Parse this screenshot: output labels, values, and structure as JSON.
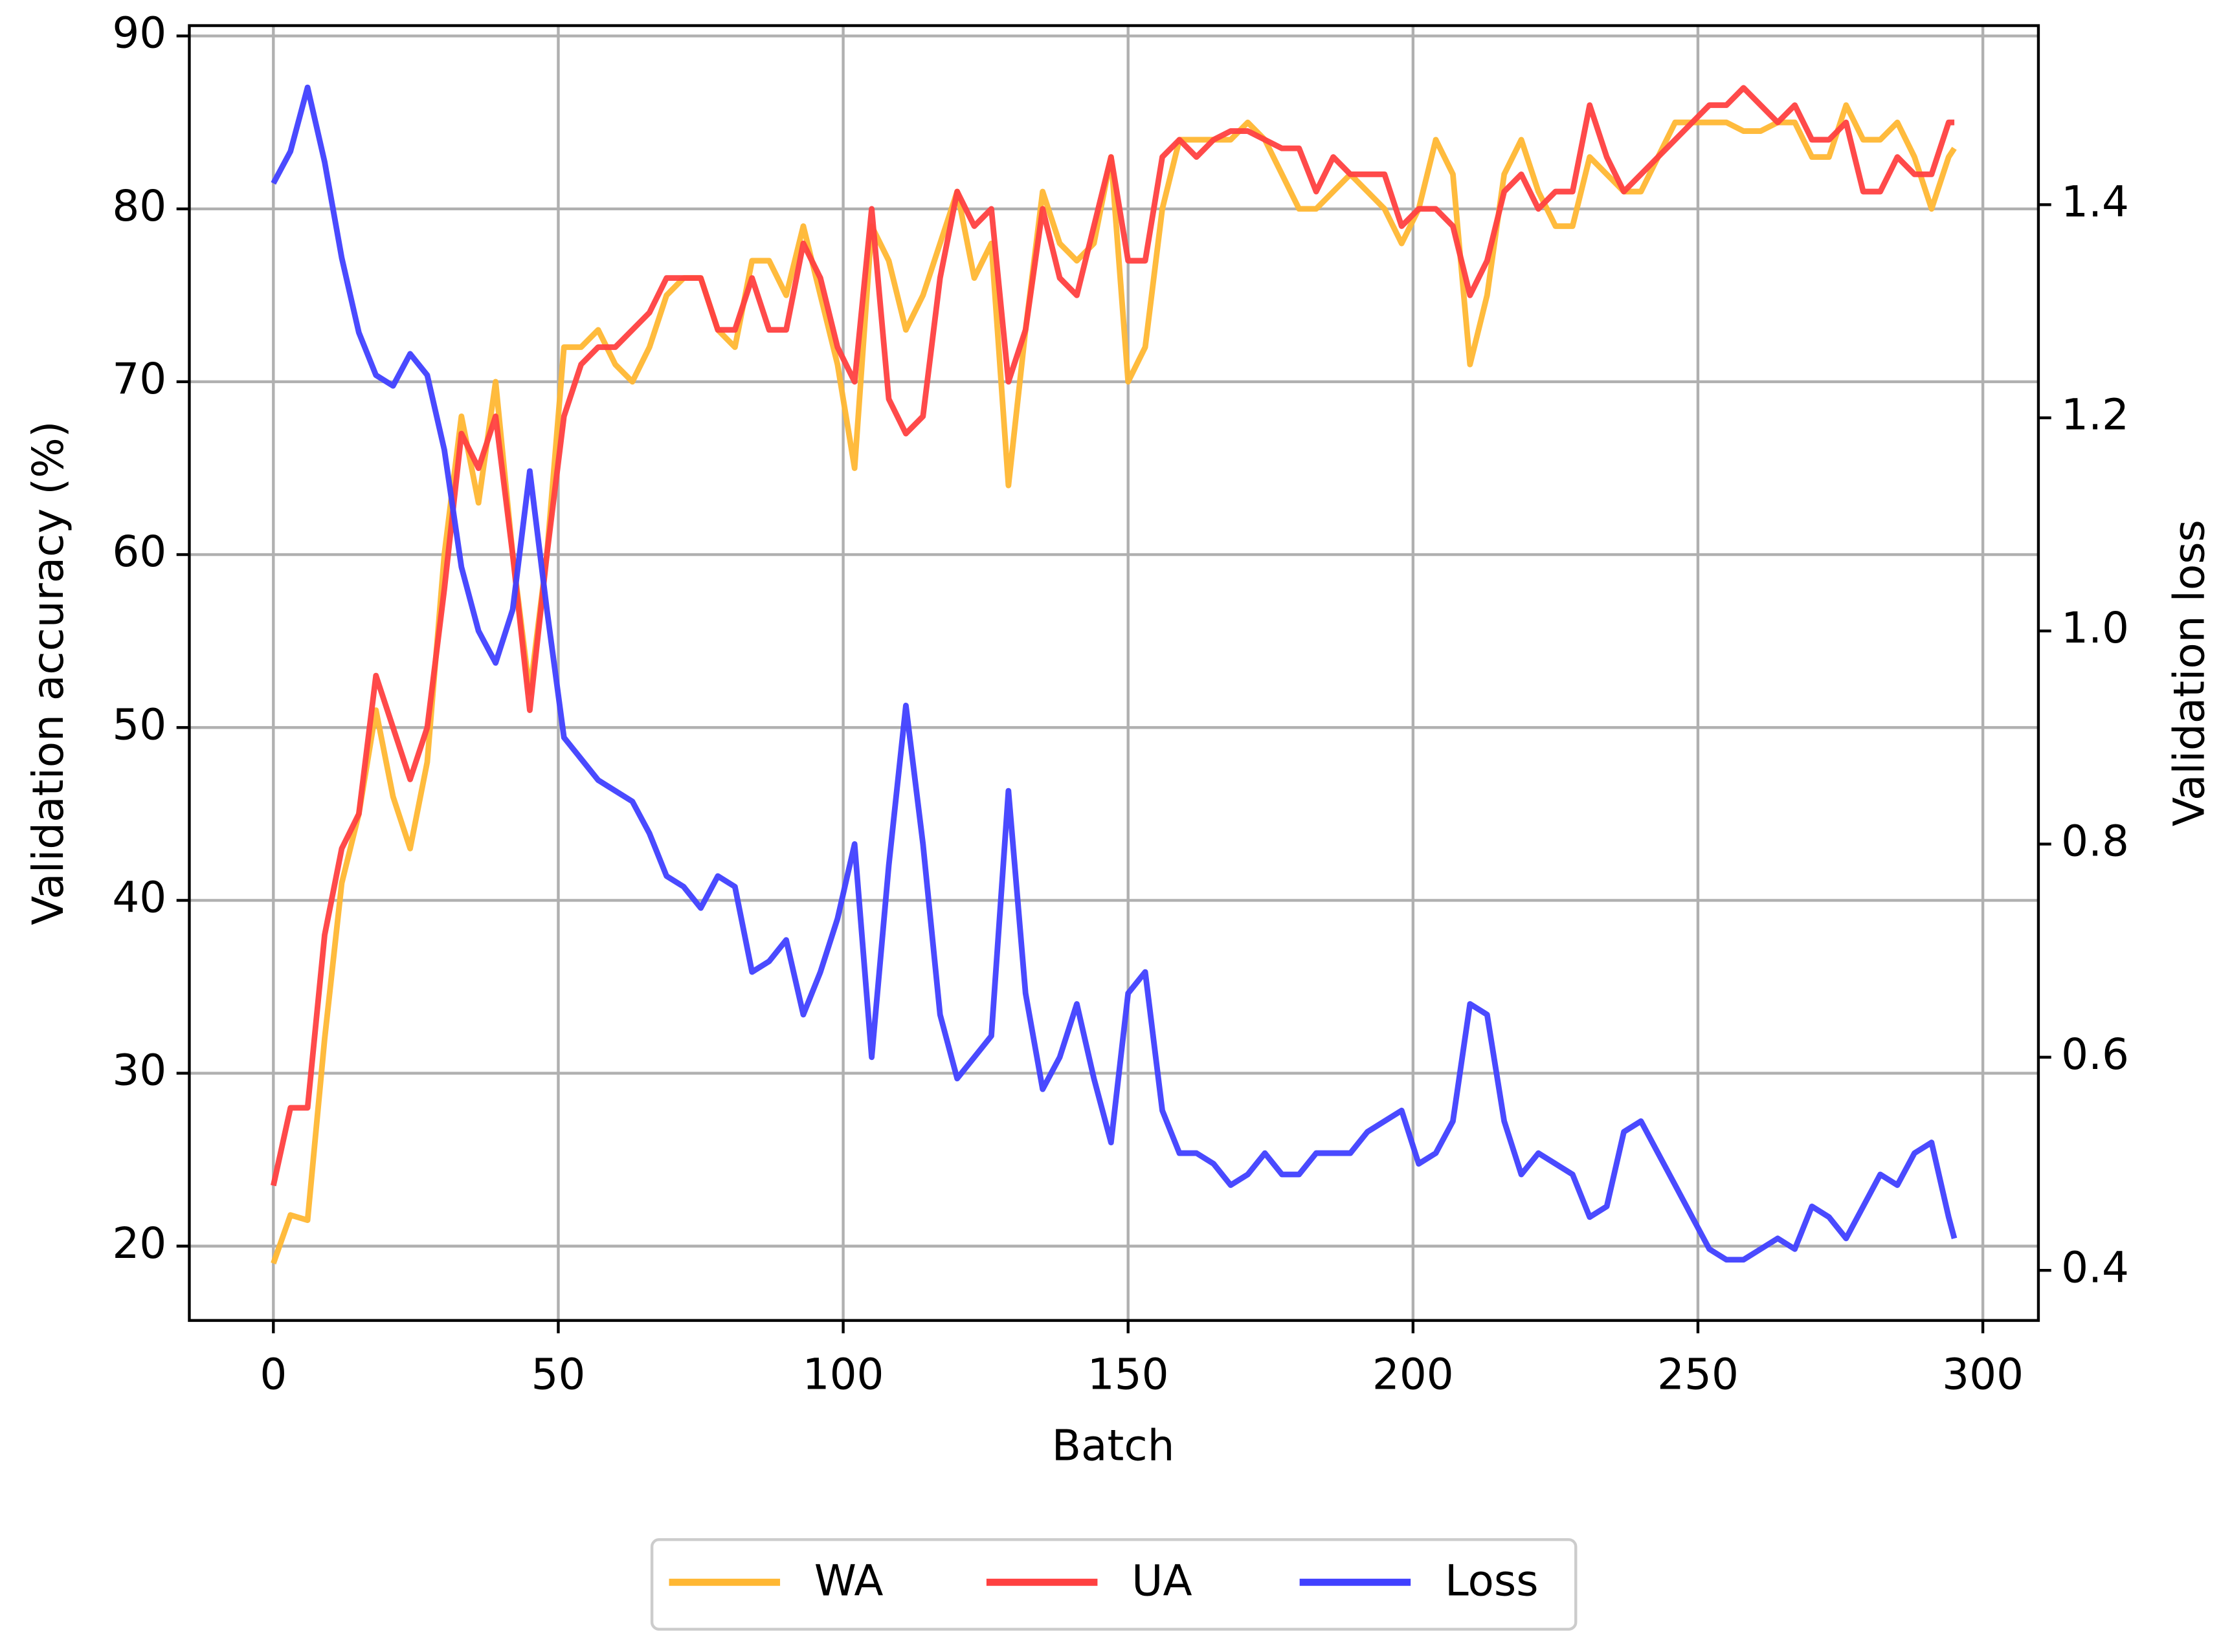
{
  "chart_data": {
    "type": "line",
    "x_label": "Batch",
    "y_label": "Validation accuracy (%)",
    "y2_label": "Validation loss",
    "x": [
      0,
      3,
      6,
      9,
      12,
      15,
      18,
      21,
      24,
      27,
      30,
      33,
      36,
      39,
      42,
      45,
      48,
      51,
      54,
      57,
      60,
      63,
      66,
      69,
      72,
      75,
      78,
      81,
      84,
      87,
      90,
      93,
      96,
      99,
      102,
      105,
      108,
      111,
      114,
      117,
      120,
      123,
      126,
      129,
      132,
      135,
      138,
      141,
      144,
      147,
      150,
      153,
      156,
      159,
      162,
      165,
      168,
      171,
      174,
      177,
      180,
      183,
      186,
      189,
      192,
      195,
      198,
      201,
      204,
      207,
      210,
      213,
      216,
      219,
      222,
      225,
      228,
      231,
      234,
      237,
      240,
      243,
      246,
      249,
      252,
      255,
      258,
      261,
      264,
      267,
      270,
      273,
      276,
      279,
      282,
      285,
      288,
      291,
      294,
      295
    ],
    "series": [
      {
        "name": "WA",
        "color": "#ffb733",
        "values": [
          19,
          21.8,
          21.5,
          32,
          41,
          45,
          51,
          46,
          43,
          48,
          60,
          68,
          63,
          70,
          60,
          52,
          60,
          72,
          72,
          73,
          71,
          70,
          72,
          75,
          76,
          76,
          73,
          72,
          77,
          77,
          75,
          79,
          75,
          71,
          65,
          79,
          77,
          73,
          75,
          78,
          81,
          76,
          78,
          64,
          73,
          81,
          78,
          77,
          78,
          83,
          70,
          72,
          80,
          84,
          84,
          84,
          84,
          85,
          84,
          82,
          80,
          80,
          81,
          82,
          81,
          80,
          78,
          80,
          84,
          82,
          71,
          75,
          82,
          84,
          81,
          79,
          79,
          83,
          82,
          81,
          81,
          83,
          85,
          85,
          85,
          85,
          84.5,
          84.5,
          85,
          85,
          83,
          83,
          86,
          84,
          84,
          85,
          83,
          80,
          83,
          83.5
        ]
      },
      {
        "name": "UA",
        "color": "#ff4040",
        "values": [
          23.5,
          28,
          28,
          38,
          43,
          45,
          53,
          50,
          47,
          50,
          58,
          67,
          65,
          68,
          60,
          51,
          60,
          68,
          71,
          72,
          72,
          73,
          74,
          76,
          76,
          76,
          73,
          73,
          76,
          73,
          73,
          78,
          76,
          72,
          70,
          80,
          69,
          67,
          68,
          76,
          81,
          79,
          80,
          70,
          73,
          80,
          76,
          75,
          79,
          83,
          77,
          77,
          83,
          84,
          83,
          84,
          84.5,
          84.5,
          84,
          83.5,
          83.5,
          81,
          83,
          82,
          82,
          82,
          79,
          80,
          80,
          79,
          75,
          77,
          81,
          82,
          80,
          81,
          81,
          86,
          83,
          81,
          82,
          83,
          84,
          85,
          86,
          86,
          87,
          86,
          85,
          86,
          84,
          84,
          85,
          81,
          81,
          83,
          82,
          82,
          85,
          85
        ]
      },
      {
        "name": "Loss",
        "color": "#4040ff",
        "axis": "y2",
        "values": [
          1.42,
          1.45,
          1.51,
          1.44,
          1.35,
          1.28,
          1.24,
          1.23,
          1.26,
          1.24,
          1.17,
          1.06,
          1.0,
          0.97,
          1.02,
          1.15,
          1.02,
          0.9,
          0.88,
          0.86,
          0.85,
          0.84,
          0.81,
          0.77,
          0.76,
          0.74,
          0.77,
          0.76,
          0.68,
          0.69,
          0.71,
          0.64,
          0.68,
          0.73,
          0.8,
          0.6,
          0.78,
          0.93,
          0.8,
          0.64,
          0.58,
          0.6,
          0.62,
          0.85,
          0.66,
          0.57,
          0.6,
          0.65,
          0.58,
          0.52,
          0.66,
          0.68,
          0.55,
          0.51,
          0.51,
          0.5,
          0.48,
          0.49,
          0.51,
          0.49,
          0.49,
          0.51,
          0.51,
          0.51,
          0.53,
          0.54,
          0.55,
          0.5,
          0.51,
          0.54,
          0.65,
          0.64,
          0.54,
          0.49,
          0.51,
          0.5,
          0.49,
          0.45,
          0.46,
          0.53,
          0.54,
          0.51,
          0.48,
          0.45,
          0.42,
          0.41,
          0.41,
          0.42,
          0.43,
          0.42,
          0.46,
          0.45,
          0.43,
          0.46,
          0.49,
          0.48,
          0.51,
          0.52,
          0.45,
          0.43
        ]
      }
    ],
    "xlim": [
      -14.75,
      309.75
    ],
    "xticks": [
      0,
      50,
      100,
      150,
      200,
      250,
      300
    ],
    "ylim": [
      15.7,
      90.6
    ],
    "yticks": [
      20,
      30,
      40,
      50,
      60,
      70,
      80,
      90
    ],
    "y2lim": [
      0.353,
      1.568
    ],
    "y2ticks": [
      0.4,
      0.6,
      0.8,
      {
        "value": 1,
        "label": "1.0"
      },
      1.2,
      1.4
    ],
    "grid": true,
    "legend": "below"
  }
}
